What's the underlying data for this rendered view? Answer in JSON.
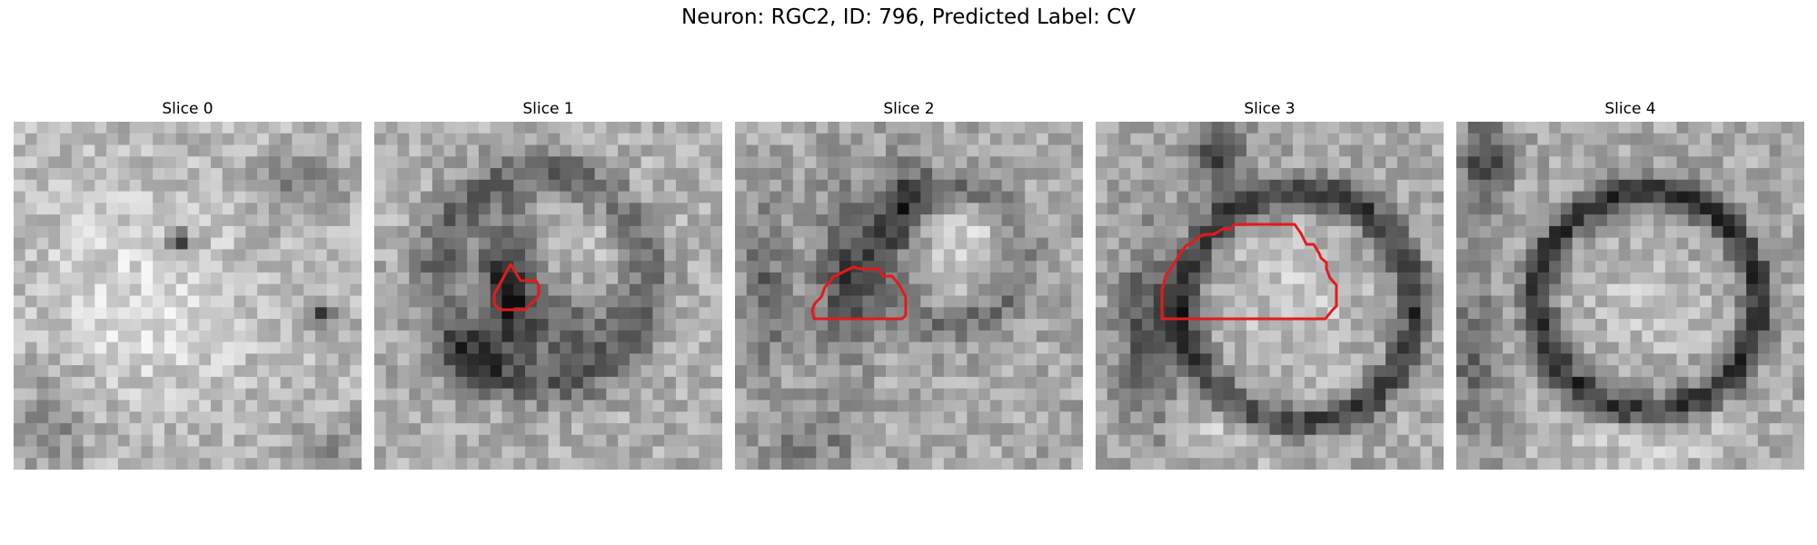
{
  "figure": {
    "title": "Neuron: RGC2, ID: 796, Predicted Label: CV"
  },
  "panels": [
    {
      "title": "Slice 0"
    },
    {
      "title": "Slice 1"
    },
    {
      "title": "Slice 2"
    },
    {
      "title": "Slice 3"
    },
    {
      "title": "Slice 4"
    }
  ],
  "colors": {
    "outline": "#e41a1c",
    "background": "#ffffff"
  }
}
